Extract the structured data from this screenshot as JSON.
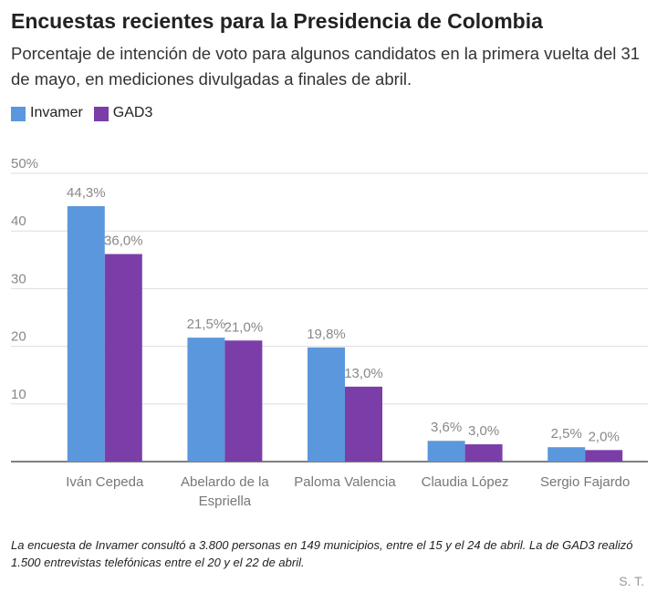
{
  "chart_data": {
    "type": "bar",
    "title": "Encuestas recientes para la Presidencia de Colombia",
    "subtitle": "Porcentaje de intención de voto para algunos candidatos en la primera vuelta del 31 de mayo, en mediciones divulgadas a finales de abril.",
    "categories": [
      "Iván Cepeda",
      "Abelardo de la Espriella",
      "Paloma Valencia",
      "Claudia López",
      "Sergio Fajardo"
    ],
    "series": [
      {
        "name": "Invamer",
        "color": "#5b97dc",
        "values": [
          44.3,
          21.5,
          19.8,
          3.6,
          2.5
        ],
        "value_labels": [
          "44,3%",
          "21,5%",
          "19,8%",
          "3,6%",
          "2,5%"
        ]
      },
      {
        "name": "GAD3",
        "color": "#7b3ea9",
        "values": [
          36.0,
          21.0,
          13.0,
          3.0,
          2.0
        ],
        "value_labels": [
          "36,0%",
          "21,0%",
          "13,0%",
          "3,0%",
          "2,0%"
        ]
      }
    ],
    "ylim": [
      0,
      50
    ],
    "yticks": [
      10,
      20,
      30,
      40,
      {
        "value": 50,
        "label": "50%"
      }
    ],
    "grid": true,
    "note": "La encuesta de Invamer consultó a 3.800 personas en 149 municipios, entre el 15 y el 24 de abril. La de GAD3 realizó 1.500 entrevistas telefónicas entre el 20 y el 22 de abril.",
    "credit": "S. T."
  }
}
